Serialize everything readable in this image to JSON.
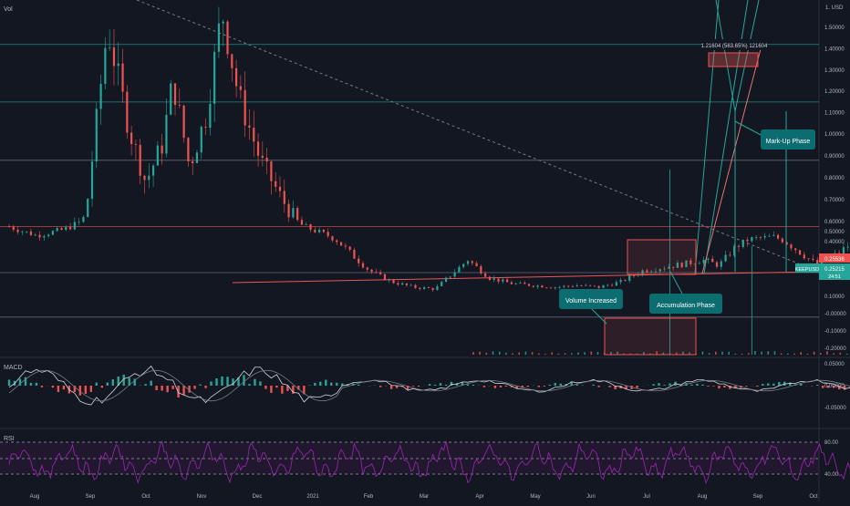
{
  "chart_data": {
    "type": "line",
    "title": "",
    "symbol": "KEEPUSD",
    "top_label": "Vol",
    "currency_label": "1. USD",
    "price_axis": [
      {
        "label": "1.50000",
        "value": 1.5
      },
      {
        "label": "1.40000",
        "value": 1.4
      },
      {
        "label": "1.30000",
        "value": 1.3
      },
      {
        "label": "1.20000",
        "value": 1.2
      },
      {
        "label": "1.10000",
        "value": 1.1
      },
      {
        "label": "1.00000",
        "value": 1.0
      },
      {
        "label": "0.90000",
        "value": 0.9
      },
      {
        "label": "0.80000",
        "value": 0.8
      },
      {
        "label": "0.70000",
        "value": 0.7
      },
      {
        "label": "0.60000",
        "value": 0.6
      },
      {
        "label": "0.50000",
        "value": 0.5
      },
      {
        "label": "0.40000",
        "value": 0.4
      },
      {
        "label": "0.10000",
        "value": 0.1
      },
      {
        "label": "-0.00000",
        "value": 0.0
      },
      {
        "label": "-0.10000",
        "value": -0.1
      },
      {
        "label": "-0.20000",
        "value": -0.2
      }
    ],
    "x_axis": [
      "Aug",
      "Sep",
      "Oct",
      "Nov",
      "Dec",
      "2021",
      "Feb",
      "Mar",
      "Apr",
      "May",
      "Jun",
      "Jul",
      "Aug",
      "Sep",
      "Oct"
    ],
    "price_badges": {
      "last": "0.25536",
      "current": "0.25215",
      "symbol": "KEEPUSD",
      "timer": "24:51"
    },
    "price_series": [
      [
        0,
        0.55
      ],
      [
        0.5,
        0.46
      ],
      [
        1,
        0.52
      ],
      [
        1.4,
        0.62
      ],
      [
        1.8,
        1.5
      ],
      [
        2.2,
        1.02
      ],
      [
        2.5,
        0.78
      ],
      [
        2.8,
        0.95
      ],
      [
        3.0,
        1.25
      ],
      [
        3.3,
        0.85
      ],
      [
        3.6,
        1.08
      ],
      [
        3.9,
        1.58
      ],
      [
        4.2,
        1.18
      ],
      [
        4.6,
        0.88
      ],
      [
        5,
        0.7
      ],
      [
        5.4,
        0.55
      ],
      [
        5.8,
        0.47
      ],
      [
        6.2,
        0.35
      ],
      [
        6.6,
        0.24
      ],
      [
        7,
        0.18
      ],
      [
        7.4,
        0.15
      ],
      [
        7.8,
        0.14
      ],
      [
        8.1,
        0.22
      ],
      [
        8.4,
        0.3
      ],
      [
        8.8,
        0.2
      ],
      [
        9.2,
        0.17
      ],
      [
        9.6,
        0.16
      ],
      [
        10,
        0.15
      ],
      [
        10.4,
        0.16
      ],
      [
        10.8,
        0.15
      ],
      [
        11.2,
        0.18
      ],
      [
        11.6,
        0.24
      ],
      [
        12,
        0.26
      ],
      [
        12.4,
        0.28
      ],
      [
        12.7,
        0.3
      ],
      [
        13,
        0.27
      ],
      [
        13.3,
        0.37
      ],
      [
        13.6,
        0.43
      ],
      [
        14,
        0.45
      ],
      [
        14.4,
        0.36
      ],
      [
        14.8,
        0.27
      ],
      [
        15.2,
        0.34
      ],
      [
        15.6,
        0.43
      ],
      [
        16,
        0.55
      ],
      [
        16.4,
        0.7
      ],
      [
        16.8,
        0.62
      ],
      [
        17.2,
        0.76
      ],
      [
        17.6,
        0.72
      ],
      [
        18,
        0.74
      ],
      [
        18.4,
        0.6
      ],
      [
        18.8,
        0.55
      ],
      [
        19.2,
        0.62
      ],
      [
        19.5,
        0.72
      ],
      [
        19.8,
        0.62
      ],
      [
        20.2,
        0.45
      ],
      [
        20.6,
        0.28
      ],
      [
        21,
        0.2
      ],
      [
        21.4,
        0.22
      ],
      [
        21.8,
        0.34
      ],
      [
        22.1,
        0.72
      ],
      [
        22.4,
        0.45
      ],
      [
        22.8,
        0.3
      ],
      [
        23.2,
        0.22
      ],
      [
        23.6,
        0.23
      ],
      [
        24,
        0.2
      ],
      [
        24.4,
        0.23
      ],
      [
        24.8,
        0.22
      ],
      [
        25.0,
        0.23
      ]
    ],
    "macd": {
      "label": "MACD",
      "axis": [
        {
          "label": "0.05000",
          "value": 0.05
        },
        {
          "label": "0.00000",
          "value": 0
        },
        {
          "label": "-0.05000",
          "value": -0.05
        }
      ]
    },
    "rsi": {
      "label": "RSI",
      "axis": [
        {
          "label": "80.00",
          "value": 80
        },
        {
          "label": "40.00",
          "value": 40
        }
      ]
    },
    "horizontal_levels": [
      1.42,
      1.15,
      0.88,
      0.55,
      0.23,
      -0.02
    ],
    "colors": {
      "background": "#131722",
      "up": "#26a69a",
      "down": "#ef5350",
      "rsi": "#9c27b0",
      "macd_line": "#787b86",
      "teal_line": "#3aa8a8",
      "red_line": "#ef5350"
    },
    "annotations": {
      "markup": "Mark-Up Phase",
      "accumulation": "Accumulation Phase",
      "volume": "Volume Increased",
      "measure": "1.21604 (563.65%) 121604"
    }
  }
}
